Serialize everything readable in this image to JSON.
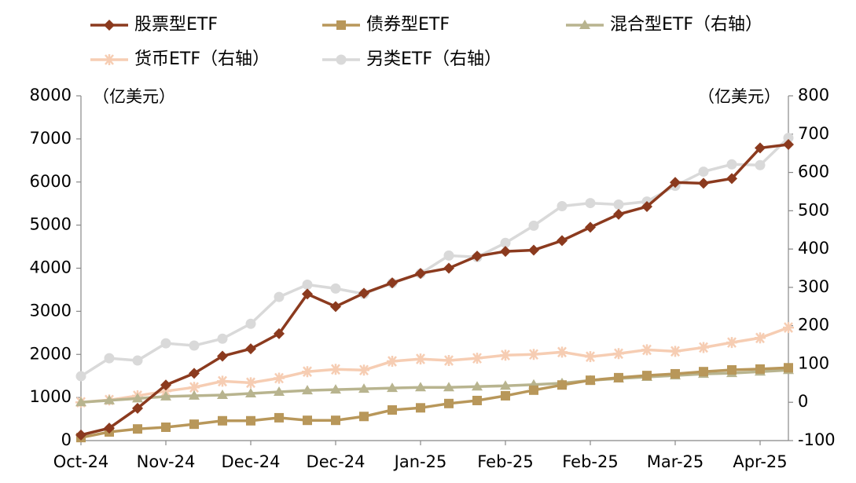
{
  "chart_data": {
    "type": "line",
    "ylabel": "（亿美元）",
    "y2label": "（亿美元）",
    "categories": [
      "Oct-24",
      null,
      null,
      "Nov-24",
      null,
      null,
      "Dec-24",
      null,
      null,
      "Dec-24",
      null,
      null,
      "Jan-25",
      null,
      null,
      "Feb-25",
      null,
      null,
      "Feb-25",
      null,
      null,
      "Mar-25",
      null,
      null,
      "Apr-25",
      null
    ],
    "ylim": [
      0,
      8000
    ],
    "yticks": [
      0,
      1000,
      2000,
      3000,
      4000,
      5000,
      6000,
      7000,
      8000
    ],
    "y2lim": [
      -100,
      800
    ],
    "y2ticks": [
      -100,
      0,
      100,
      200,
      300,
      400,
      500,
      600,
      700,
      800
    ],
    "grid": false,
    "series": [
      {
        "name": "股票型ETF",
        "color": "#8b3a1e",
        "marker": "diamond",
        "axis": "y",
        "values": [
          130,
          290,
          750,
          1290,
          1560,
          1960,
          2130,
          2480,
          3400,
          3110,
          3420,
          3660,
          3880,
          4000,
          4280,
          4390,
          4420,
          4640,
          4950,
          5250,
          5430,
          5990,
          5970,
          6080,
          6790,
          6870
        ]
      },
      {
        "name": "债券型ETF",
        "color": "#b8975a",
        "marker": "square",
        "axis": "y",
        "values": [
          70,
          200,
          270,
          310,
          380,
          460,
          460,
          530,
          470,
          470,
          560,
          710,
          760,
          860,
          930,
          1040,
          1170,
          1290,
          1400,
          1460,
          1510,
          1550,
          1600,
          1640,
          1660,
          1690
        ]
      },
      {
        "name": "混合型ETF（右轴）",
        "color": "#b8b48f",
        "marker": "triangle",
        "axis": "y2",
        "values": [
          0,
          5,
          10,
          15,
          17,
          19,
          23,
          27,
          31,
          33,
          35,
          37,
          39,
          39,
          41,
          43,
          46,
          50,
          57,
          62,
          66,
          70,
          74,
          76,
          80,
          84
        ]
      },
      {
        "name": "货币ETF（右轴）",
        "color": "#f6cdb3",
        "marker": "star",
        "axis": "y2",
        "values": [
          0,
          6,
          17,
          29,
          39,
          55,
          51,
          63,
          80,
          86,
          84,
          107,
          113,
          109,
          115,
          123,
          125,
          131,
          119,
          127,
          137,
          133,
          143,
          156,
          168,
          195
        ]
      },
      {
        "name": "另类ETF（右轴）",
        "color": "#d9d9d9",
        "marker": "circle",
        "axis": "y2",
        "values": [
          68,
          115,
          109,
          154,
          148,
          166,
          205,
          275,
          307,
          297,
          283,
          311,
          336,
          383,
          379,
          416,
          461,
          512,
          520,
          516,
          524,
          565,
          602,
          621,
          619,
          690
        ]
      }
    ]
  }
}
